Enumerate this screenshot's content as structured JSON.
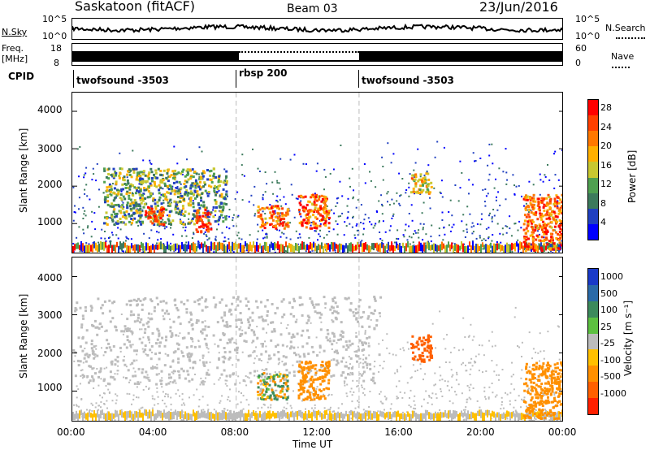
{
  "header": {
    "station": "Saskatoon (fitACF)",
    "beam": "Beam 03",
    "date": "23/Jun/2016"
  },
  "noise_panel": {
    "left_label": "N.Sky",
    "right_label": "N.Search",
    "left_ticks": [
      "10^5",
      "10^0"
    ],
    "right_ticks": [
      "10^5",
      "10^0"
    ]
  },
  "freq_panel": {
    "left_label_1": "Freq.",
    "left_label_2": "[MHz]",
    "left_ticks": [
      "18",
      "8"
    ],
    "right_ticks": [
      "60",
      "0"
    ],
    "right_label": "Nave"
  },
  "cpid_panel": {
    "label": "CPID",
    "segments": [
      {
        "name": "twofsound -3503",
        "start": "00:00",
        "end": "08:00"
      },
      {
        "name": "rbsp 200",
        "start": "08:00",
        "end": "14:00"
      },
      {
        "name": "twofsound -3503",
        "start": "14:00",
        "end": "00:00"
      }
    ]
  },
  "power_panel": {
    "ylabel": "Slant Range [km]",
    "yticks": [
      "4000",
      "3000",
      "2000",
      "1000"
    ],
    "colorbar_label": "Power [dB]",
    "colorbar_ticks": [
      "28",
      "24",
      "20",
      "16",
      "12",
      "8",
      "4"
    ],
    "colors": [
      "#0000ff",
      "#2040c0",
      "#3c7a5c",
      "#4fa050",
      "#c8c830",
      "#ffb000",
      "#ff7800",
      "#ff4000",
      "#ff0000"
    ]
  },
  "velocity_panel": {
    "ylabel": "Slant Range [km]",
    "yticks": [
      "4000",
      "3000",
      "2000",
      "1000"
    ],
    "colorbar_label": "Velocity [m s⁻¹]",
    "colorbar_ticks": [
      "1000",
      "500",
      "100",
      "25",
      "-25",
      "-100",
      "-500",
      "-1000"
    ],
    "colors": [
      "#1a3ac8",
      "#2a6aa8",
      "#3c8a5c",
      "#5cc040",
      "#bcbcbc",
      "#ffc000",
      "#ff9000",
      "#ff6000",
      "#ff2000"
    ]
  },
  "xaxis": {
    "label": "Time UT",
    "ticks": [
      "00:00",
      "04:00",
      "08:00",
      "12:00",
      "16:00",
      "20:00",
      "00:00"
    ]
  },
  "chart_data": [
    {
      "type": "heatmap",
      "title": "Saskatoon (fitACF)  Beam 03  23/Jun/2016",
      "xlabel": "Time UT",
      "ylabel": "Slant Range [km]",
      "xlim": [
        "00:00",
        "24:00"
      ],
      "ylim": [
        180,
        4500
      ],
      "colorbar": "Power [dB]",
      "crange": [
        0,
        30
      ],
      "features": [
        {
          "time_range": [
            "01:30",
            "07:30"
          ],
          "range_km": [
            1000,
            2500
          ],
          "power_db": [
            4,
            20
          ]
        },
        {
          "time_range": [
            "03:30",
            "04:30"
          ],
          "range_km": [
            1000,
            1500
          ],
          "power_db": [
            20,
            30
          ]
        },
        {
          "time_range": [
            "06:00",
            "06:45"
          ],
          "range_km": [
            800,
            1400
          ],
          "power_db": [
            20,
            30
          ]
        },
        {
          "time_range": [
            "09:00",
            "10:30"
          ],
          "range_km": [
            900,
            1500
          ],
          "power_db": [
            16,
            30
          ]
        },
        {
          "time_range": [
            "11:00",
            "12:30"
          ],
          "range_km": [
            900,
            1800
          ],
          "power_db": [
            16,
            30
          ]
        },
        {
          "time_range": [
            "16:30",
            "17:30"
          ],
          "range_km": [
            1800,
            2400
          ],
          "power_db": [
            12,
            24
          ]
        },
        {
          "time_range": [
            "22:00",
            "24:00"
          ],
          "range_km": [
            300,
            1800
          ],
          "power_db": [
            16,
            30
          ]
        }
      ]
    },
    {
      "type": "heatmap",
      "title": "Velocity",
      "xlabel": "Time UT",
      "ylabel": "Slant Range [km]",
      "xlim": [
        "00:00",
        "24:00"
      ],
      "ylim": [
        180,
        4500
      ],
      "colorbar": "Velocity [m s⁻¹]",
      "crange": [
        -1000,
        1000
      ],
      "features": [
        {
          "time_range": [
            "00:00",
            "15:00"
          ],
          "range_km": [
            1200,
            3500
          ],
          "velocity": [
            -25,
            25
          ]
        },
        {
          "time_range": [
            "09:00",
            "10:30"
          ],
          "range_km": [
            800,
            1500
          ],
          "velocity": [
            -500,
            500
          ]
        },
        {
          "time_range": [
            "11:00",
            "12:30"
          ],
          "range_km": [
            800,
            1800
          ],
          "velocity": [
            -500,
            -100
          ]
        },
        {
          "time_range": [
            "16:30",
            "17:30"
          ],
          "range_km": [
            1800,
            2500
          ],
          "velocity": [
            -1000,
            -500
          ]
        },
        {
          "time_range": [
            "22:00",
            "24:00"
          ],
          "range_km": [
            300,
            1800
          ],
          "velocity": [
            -500,
            -100
          ]
        }
      ]
    }
  ]
}
